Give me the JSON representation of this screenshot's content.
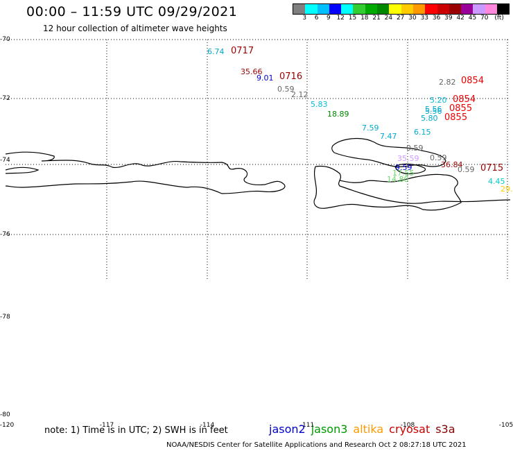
{
  "header": {
    "title": "00:00 – 11:59 UTC 09/29/2021",
    "subtitle": "12 hour collection of altimeter wave heights"
  },
  "colorbar": {
    "colors": [
      "#7f7f7f",
      "#00ffff",
      "#00bfff",
      "#0000ff",
      "#00ffff",
      "#33cc33",
      "#00aa00",
      "#008800",
      "#ffff00",
      "#ffcc00",
      "#ff9900",
      "#ff0000",
      "#cc0000",
      "#990000",
      "#990099",
      "#cc99ff",
      "#ff88dd",
      "#000000"
    ],
    "labels": [
      "3",
      "6",
      "9",
      "12",
      "15",
      "18",
      "21",
      "24",
      "27",
      "30",
      "33",
      "36",
      "39",
      "42",
      "45",
      "70",
      "(ft)"
    ]
  },
  "axes": {
    "lat_labels": [
      "-70",
      "-72",
      "-74",
      "-76",
      "-78",
      "-80"
    ],
    "lon_labels": [
      "-120",
      "-117",
      "-114",
      "-111",
      "-108",
      "-105"
    ]
  },
  "wave_heights": [
    {
      "text": "6.74",
      "color": "#00aacc"
    },
    {
      "text": "35.66",
      "color": "#990000"
    },
    {
      "text": "9.01",
      "color": "#0000cc"
    },
    {
      "text": "0.59",
      "color": "#666666"
    },
    {
      "text": "2.12",
      "color": "#666666"
    },
    {
      "text": "5.83",
      "color": "#00bbdd"
    },
    {
      "text": "18.89",
      "color": "#008800"
    },
    {
      "text": "7.59",
      "color": "#00aacc"
    },
    {
      "text": "7.47",
      "color": "#00aacc"
    },
    {
      "text": "6.15",
      "color": "#00aacc"
    },
    {
      "text": "2.82",
      "color": "#666666"
    },
    {
      "text": "5.20",
      "color": "#00bbdd"
    },
    {
      "text": "5.56",
      "color": "#00aacc"
    },
    {
      "text": "5.56",
      "color": "#00aacc"
    },
    {
      "text": "5.80",
      "color": "#00aacc"
    },
    {
      "text": "0.59",
      "color": "#666666"
    },
    {
      "text": "0.59",
      "color": "#666666"
    },
    {
      "text": "36.84",
      "color": "#990000"
    },
    {
      "text": "0.59",
      "color": "#666666"
    },
    {
      "text": "35.59",
      "color": "#cc99ff"
    },
    {
      "text": "9.59",
      "color": "#0000cc"
    },
    {
      "text": "17.55",
      "color": "#66dd66"
    },
    {
      "text": "14.80",
      "color": "#66dd66"
    },
    {
      "text": "4.45",
      "color": "#00cccc"
    },
    {
      "text": "29.",
      "color": "#ffcc00"
    }
  ],
  "time_labels": [
    {
      "text": "0717",
      "color": "#990000"
    },
    {
      "text": "0716",
      "color": "#990000"
    },
    {
      "text": "0854",
      "color": "#ee0000"
    },
    {
      "text": "0854",
      "color": "#ee0000"
    },
    {
      "text": "0855",
      "color": "#ee0000"
    },
    {
      "text": "0855",
      "color": "#ee0000"
    },
    {
      "text": "0715",
      "color": "#990000"
    }
  ],
  "footer": {
    "note": "note: 1) Time is in UTC; 2) SWH is in feet",
    "satellites": [
      {
        "name": "jason2",
        "color": "#0000cc"
      },
      {
        "name": "jason3",
        "color": "#009900"
      },
      {
        "name": "altika",
        "color": "#ff9900"
      },
      {
        "name": "cryosat",
        "color": "#cc0000"
      },
      {
        "name": "s3a",
        "color": "#880000"
      }
    ],
    "credit": "NOAA/NESDIS Center for Satellite Applications and Research    Oct  2 08:27:18 UTC 2021"
  }
}
